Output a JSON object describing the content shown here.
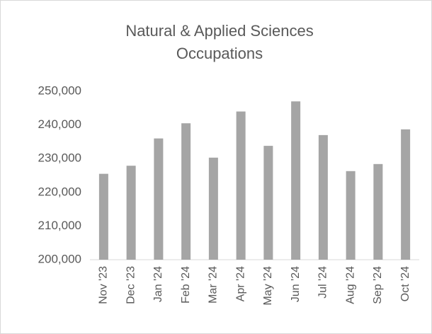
{
  "chart_data": {
    "type": "bar",
    "title": [
      "Natural & Applied Sciences",
      "Occupations"
    ],
    "categories": [
      "Nov '23",
      "Dec '23",
      "Jan '24",
      "Feb '24",
      "Mar '24",
      "Apr '24",
      "May '24",
      "Jun '24",
      "Jul '24",
      "Aug '24",
      "Sep '24",
      "Oct '24"
    ],
    "values": [
      225500,
      227900,
      236000,
      240500,
      230300,
      244000,
      233800,
      247000,
      237000,
      226300,
      228400,
      238700
    ],
    "color": "#a5a5a5",
    "ylim": [
      200000,
      250000
    ],
    "yticks": [
      {
        "value": 200000,
        "label": "200,000"
      },
      {
        "value": 210000,
        "label": "210,000"
      },
      {
        "value": 220000,
        "label": "220,000"
      },
      {
        "value": 230000,
        "label": "230,000"
      },
      {
        "value": 240000,
        "label": "240,000"
      },
      {
        "value": 250000,
        "label": "250,000"
      }
    ],
    "grid": false
  }
}
